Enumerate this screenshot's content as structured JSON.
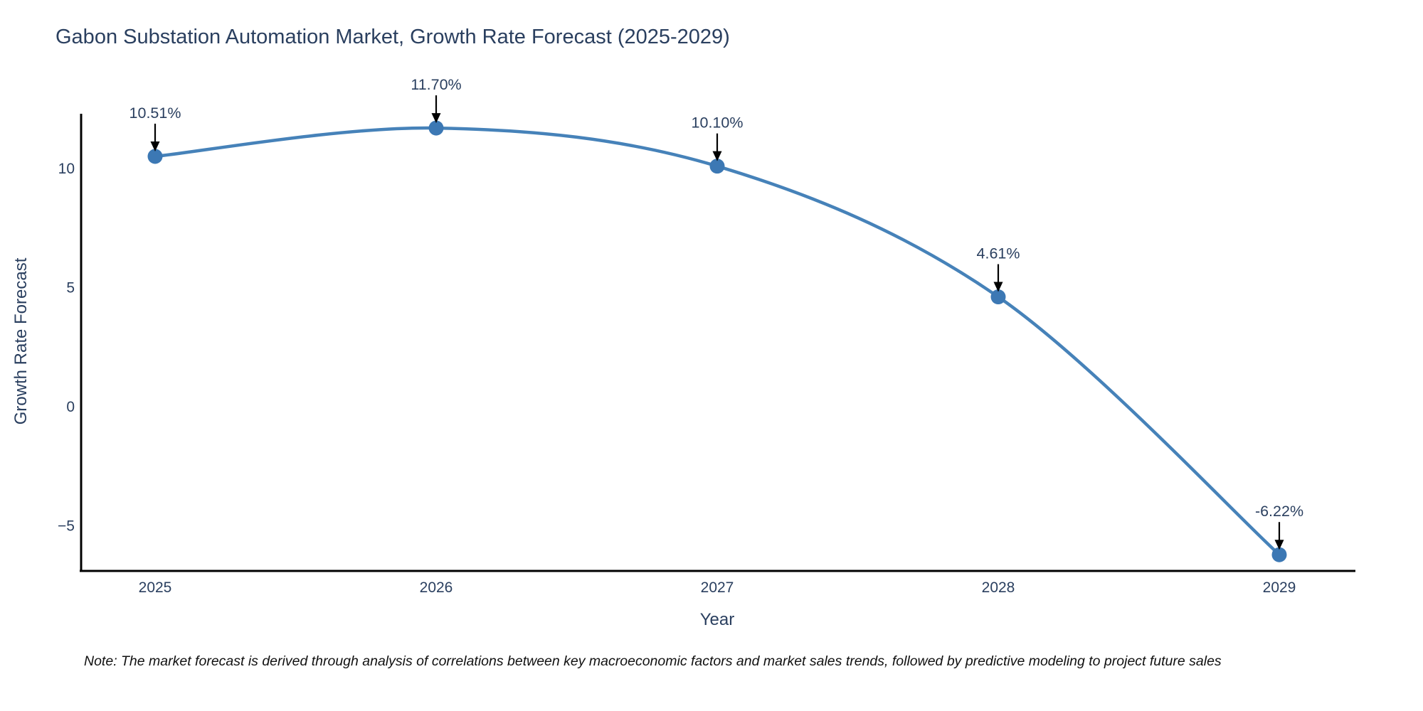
{
  "note": "Note: The market forecast is derived through analysis of correlations between key macroeconomic factors and market sales trends, followed by predictive modeling to project future sales",
  "chart_data": {
    "type": "line",
    "title": "Gabon Substation Automation Market, Growth Rate Forecast (2025-2029)",
    "xlabel": "Year",
    "ylabel": "Growth Rate Forecast",
    "x": [
      2025,
      2026,
      2027,
      2028,
      2029
    ],
    "series": [
      {
        "name": "Growth Rate Forecast",
        "values": [
          10.51,
          11.7,
          10.1,
          4.61,
          -6.22
        ]
      }
    ],
    "point_labels": [
      "10.51%",
      "11.70%",
      "10.10%",
      "4.61%",
      "-6.22%"
    ],
    "xtick_labels": [
      "2025",
      "2026",
      "2027",
      "2028",
      "2029"
    ],
    "yticks": [
      10,
      5,
      0,
      -5
    ],
    "ytick_labels": [
      "10",
      "5",
      "0",
      "−5"
    ],
    "ylim": [
      -6.9,
      12.3
    ],
    "line_shape": "spline",
    "grid": false,
    "legend": "none",
    "colors": {
      "line": "#4682b9",
      "marker": "#3c78b4",
      "axis": "#000000",
      "text": "#2a3f5f",
      "annotation_text": "#2a3f5f",
      "annotation_arrow": "#000000",
      "background": "#ffffff"
    }
  }
}
